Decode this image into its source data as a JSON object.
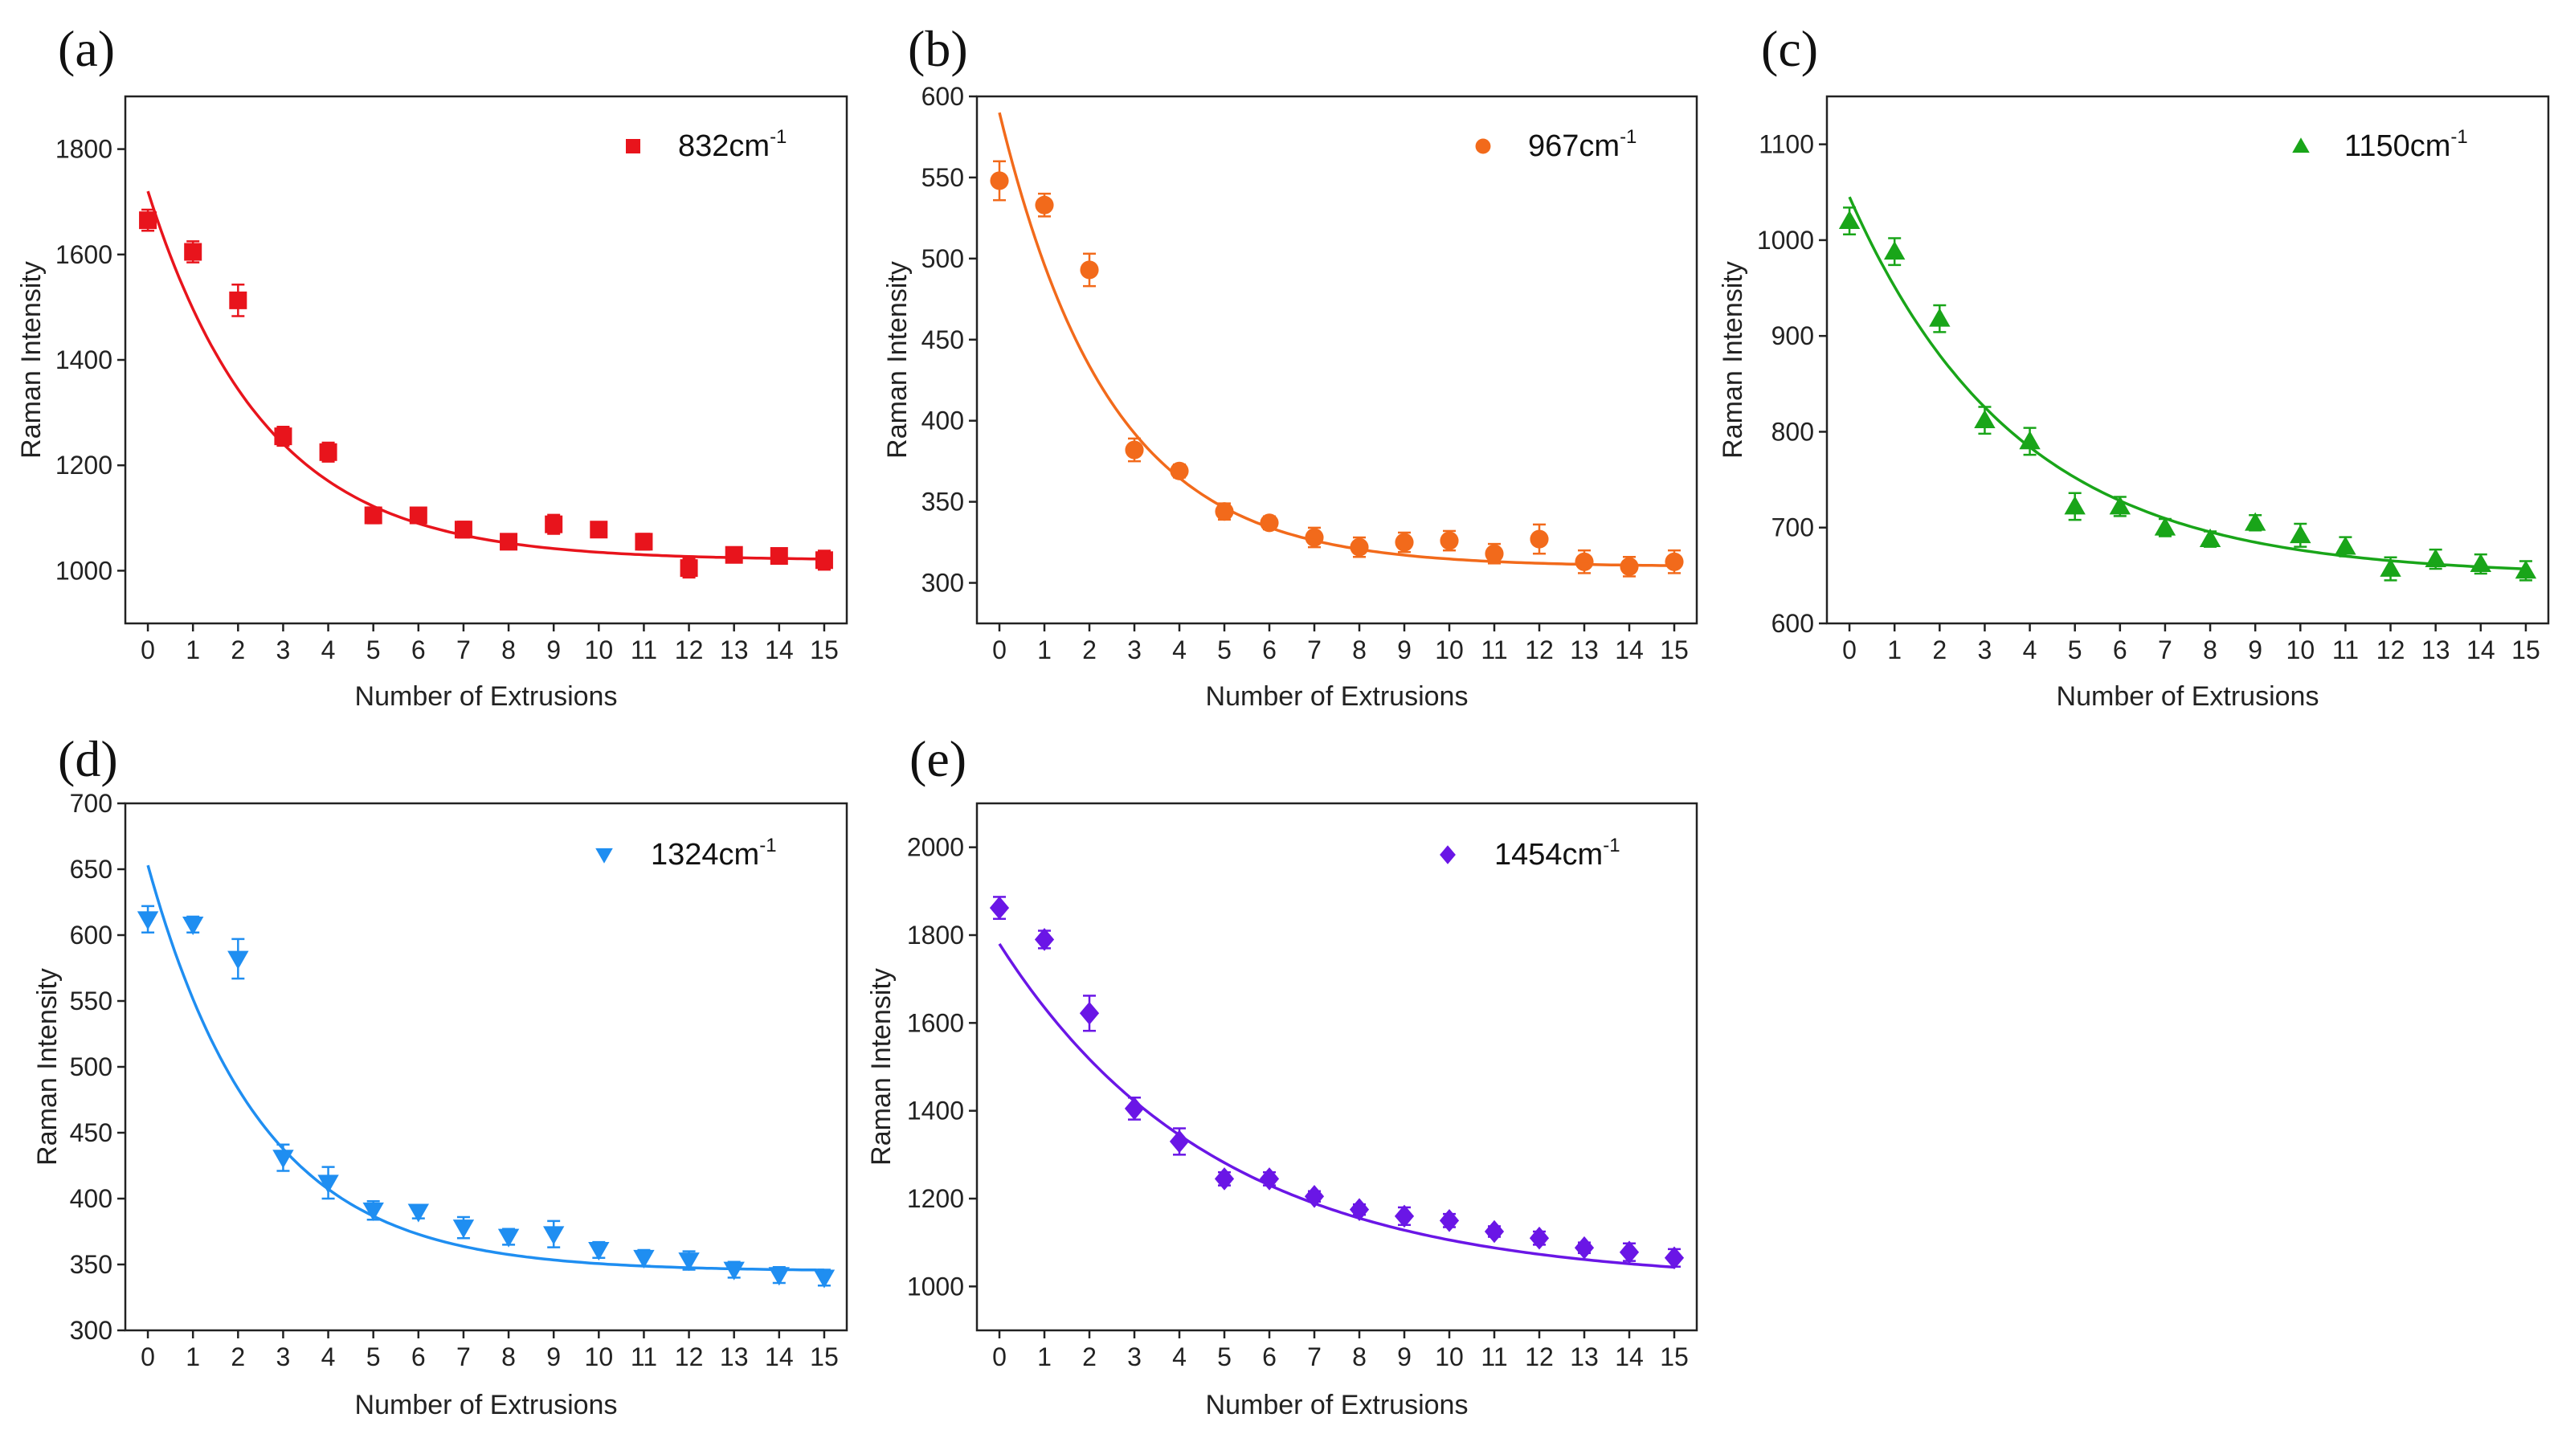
{
  "chart_data": [
    {
      "type": "scatter",
      "panel": "(a)",
      "legend": "832cm",
      "legend_sup": "-1",
      "marker": "square",
      "color": "#e8141c",
      "xlabel": "Number of Extrusions",
      "ylabel": "Raman Intensity",
      "xlim": [
        -0.5,
        15.5
      ],
      "ylim": [
        900,
        1900
      ],
      "yticks": [
        1000,
        1200,
        1400,
        1600,
        1800
      ],
      "x": [
        0,
        1,
        2,
        3,
        4,
        5,
        6,
        7,
        8,
        9,
        10,
        11,
        12,
        13,
        14,
        15
      ],
      "y": [
        1665,
        1605,
        1513,
        1255,
        1225,
        1105,
        1105,
        1078,
        1055,
        1088,
        1078,
        1055,
        1005,
        1030,
        1028,
        1020
      ],
      "err": [
        20,
        20,
        30,
        18,
        18,
        15,
        12,
        15,
        12,
        18,
        12,
        15,
        18,
        12,
        12,
        18
      ],
      "fit": {
        "y0": 1020,
        "A": 700,
        "tau": 2.6
      }
    },
    {
      "type": "scatter",
      "panel": "(b)",
      "legend": "967cm",
      "legend_sup": "-1",
      "marker": "circle",
      "color": "#f26a1b",
      "xlabel": "Number of Extrusions",
      "ylabel": "Raman Intensity",
      "xlim": [
        -0.5,
        15.5
      ],
      "ylim": [
        275,
        600
      ],
      "yticks": [
        300,
        350,
        400,
        450,
        500,
        550,
        600
      ],
      "x": [
        0,
        1,
        2,
        3,
        4,
        5,
        6,
        7,
        8,
        9,
        10,
        11,
        12,
        13,
        14,
        15
      ],
      "y": [
        548,
        533,
        493,
        382,
        369,
        344,
        337,
        328,
        322,
        325,
        326,
        318,
        327,
        313,
        310,
        313
      ],
      "err": [
        12,
        7,
        10,
        7,
        4,
        5,
        4,
        6,
        6,
        6,
        6,
        6,
        9,
        7,
        6,
        7
      ],
      "fit": {
        "y0": 310,
        "A": 280,
        "tau": 2.45
      }
    },
    {
      "type": "scatter",
      "panel": "(c)",
      "legend": "1150cm",
      "legend_sup": "-1",
      "marker": "triangle-up",
      "color": "#19a519",
      "xlabel": "Number of Extrusions",
      "ylabel": "Raman Intensity",
      "xlim": [
        -0.5,
        15.5
      ],
      "ylim": [
        600,
        1150
      ],
      "yticks": [
        600,
        700,
        800,
        900,
        1000,
        1100
      ],
      "x": [
        0,
        1,
        2,
        3,
        4,
        5,
        6,
        7,
        8,
        9,
        10,
        11,
        12,
        13,
        14,
        15
      ],
      "y": [
        1020,
        988,
        918,
        812,
        790,
        722,
        722,
        700,
        688,
        705,
        692,
        680,
        657,
        667,
        662,
        655
      ],
      "err": [
        14,
        14,
        14,
        14,
        14,
        14,
        10,
        9,
        8,
        8,
        12,
        10,
        12,
        10,
        10,
        10
      ],
      "fit": {
        "y0": 650,
        "A": 395,
        "tau": 3.7
      }
    },
    {
      "type": "scatter",
      "panel": "(d)",
      "legend": "1324cm",
      "legend_sup": "-1",
      "marker": "triangle-down",
      "color": "#1f8ef1",
      "xlabel": "Number of Extrusions",
      "ylabel": "Raman Intensity",
      "xlim": [
        -0.5,
        15.5
      ],
      "ylim": [
        300,
        700
      ],
      "yticks": [
        300,
        350,
        400,
        450,
        500,
        550,
        600,
        650,
        700
      ],
      "x": [
        0,
        1,
        2,
        3,
        4,
        5,
        6,
        7,
        8,
        9,
        10,
        11,
        12,
        13,
        14,
        15
      ],
      "y": [
        612,
        608,
        582,
        431,
        412,
        391,
        390,
        378,
        371,
        373,
        361,
        355,
        353,
        346,
        342,
        340
      ],
      "err": [
        10,
        6,
        15,
        10,
        12,
        7,
        5,
        8,
        6,
        10,
        6,
        6,
        7,
        6,
        6,
        6
      ],
      "fit": {
        "y0": 345,
        "A": 308,
        "tau": 2.5
      }
    },
    {
      "type": "scatter",
      "panel": "(e)",
      "legend": "1454cm",
      "legend_sup": "-1",
      "marker": "diamond",
      "color": "#6a16e6",
      "xlabel": "Number of Extrusions",
      "ylabel": "Raman Intensity",
      "xlim": [
        -0.5,
        15.5
      ],
      "ylim": [
        900,
        2100
      ],
      "yticks": [
        1000,
        1200,
        1400,
        1600,
        1800,
        2000
      ],
      "x": [
        0,
        1,
        2,
        3,
        4,
        5,
        6,
        7,
        8,
        9,
        10,
        11,
        12,
        13,
        14,
        15
      ],
      "y": [
        1862,
        1790,
        1622,
        1405,
        1330,
        1245,
        1245,
        1205,
        1175,
        1160,
        1150,
        1125,
        1110,
        1088,
        1078,
        1065
      ],
      "err": [
        25,
        20,
        40,
        25,
        30,
        15,
        15,
        12,
        12,
        20,
        15,
        12,
        15,
        12,
        20,
        20
      ],
      "fit": {
        "y0": 1010,
        "A": 770,
        "tau": 4.8
      }
    }
  ]
}
